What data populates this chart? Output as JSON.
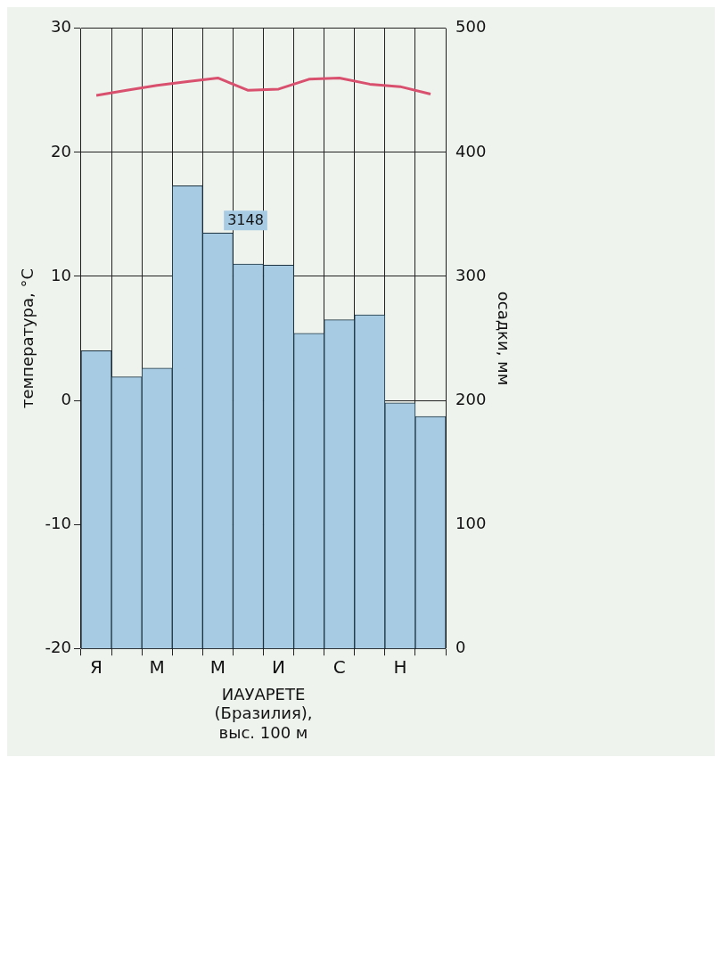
{
  "chart_data": {
    "type": "bar",
    "xlabel": "ИАУАРЕТЕ\n(Бразилия),\nвыс. 100 м",
    "ylabel": "температура, °С",
    "y2label": "осадки, мм",
    "categories": [
      "Я",
      null,
      "М",
      null,
      "М",
      null,
      "И",
      null,
      "С",
      null,
      "Н",
      null
    ],
    "series": [
      {
        "axis": "y2",
        "color": "#a8cbe4",
        "values": [
          240,
          219,
          226,
          373,
          335,
          310,
          309,
          254,
          265,
          269,
          198,
          187
        ]
      },
      {
        "type": "line",
        "axis": "y",
        "color": "#d9506e",
        "values": [
          24.6,
          25.0,
          25.4,
          25.7,
          26.0,
          25.0,
          25.1,
          25.9,
          26.0,
          25.5,
          25.3,
          24.7
        ]
      }
    ],
    "ylim": [
      -20,
      30
    ],
    "yticks": [
      -20,
      -10,
      0,
      10,
      20,
      30
    ],
    "y2lim": [
      0,
      500
    ],
    "y2ticks": [
      0,
      100,
      200,
      300,
      400,
      500
    ],
    "annotations": [
      "3148"
    ],
    "grid": true,
    "legend": false,
    "marker": "none"
  }
}
